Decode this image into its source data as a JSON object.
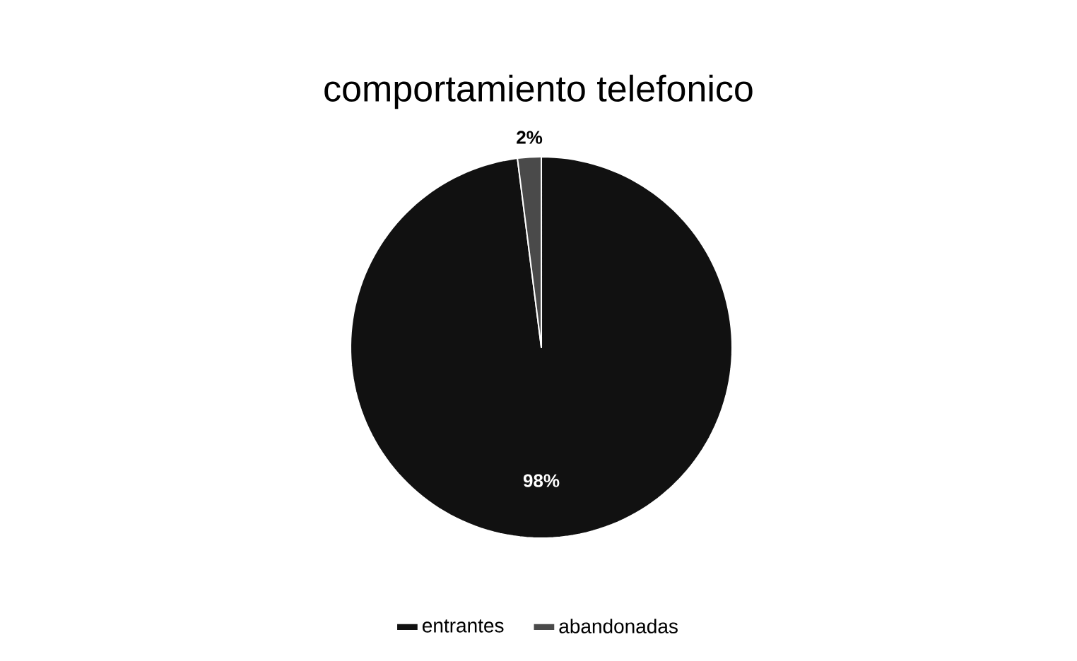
{
  "chart_data": {
    "type": "pie",
    "title": "comportamiento telefonico",
    "categories": [
      "entrantes",
      "abandonadas"
    ],
    "values": [
      98,
      2
    ],
    "colors": [
      "#111111",
      "#4a4a4a"
    ],
    "value_labels": [
      "98%",
      "2%"
    ],
    "legend": "bottom"
  }
}
